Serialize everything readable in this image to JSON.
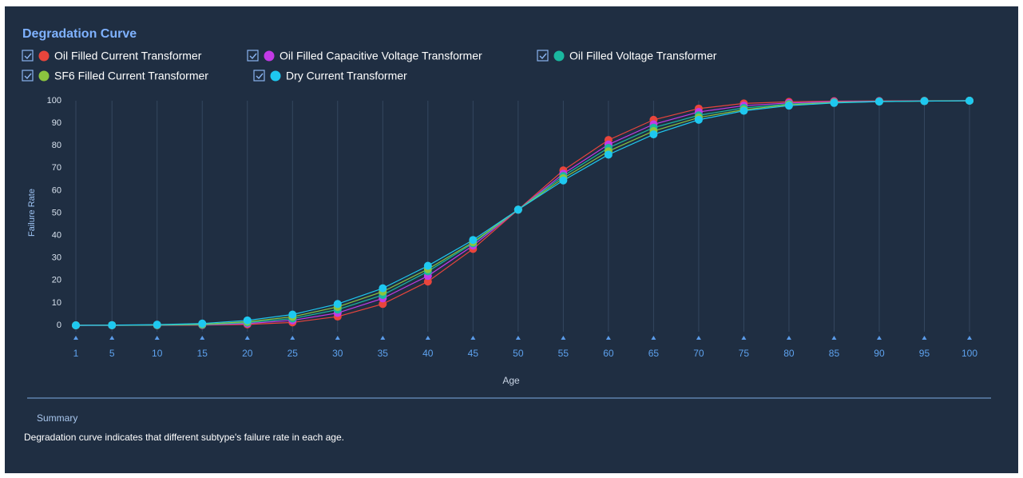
{
  "chart_data": {
    "type": "line",
    "title": "Degradation Curve",
    "xlabel": "Age",
    "ylabel": "Failure Rate",
    "x": [
      1,
      5,
      10,
      15,
      20,
      25,
      30,
      35,
      40,
      45,
      50,
      55,
      60,
      65,
      70,
      75,
      80,
      85,
      90,
      95,
      100
    ],
    "xlim": [
      1,
      100
    ],
    "xticks": [
      1,
      5,
      10,
      15,
      20,
      25,
      30,
      35,
      40,
      45,
      50,
      55,
      60,
      65,
      70,
      75,
      80,
      85,
      90,
      95,
      100
    ],
    "ylim": [
      0,
      100
    ],
    "yticks": [
      0,
      10,
      20,
      30,
      40,
      50,
      60,
      70,
      80,
      90,
      100
    ],
    "grid": true,
    "series": [
      {
        "name": "Oil Filled Current Transformer",
        "color": "#e8453c",
        "values": [
          0,
          0,
          0,
          0.1,
          0.4,
          1.3,
          3.9,
          9.5,
          19.5,
          34,
          51.5,
          69,
          82.5,
          91.5,
          96.5,
          98.8,
          99.5,
          99.8,
          99.9,
          100,
          100
        ]
      },
      {
        "name": "Oil Filled Capacitive Voltage Transformer",
        "color": "#c23ae6",
        "values": [
          0,
          0,
          0.1,
          0.2,
          0.8,
          2.2,
          5.5,
          12,
          22,
          35.5,
          51.5,
          67.5,
          80.5,
          89.5,
          95,
          97.8,
          99,
          99.6,
          99.8,
          99.9,
          100
        ]
      },
      {
        "name": "Oil Filled Voltage Transformer",
        "color": "#1ab8a0",
        "values": [
          0,
          0,
          0.1,
          0.3,
          1.2,
          3,
          7,
          13.5,
          24,
          36.5,
          51.5,
          66.5,
          79,
          88,
          93.5,
          96.8,
          98.5,
          99.3,
          99.7,
          99.9,
          100
        ]
      },
      {
        "name": "SF6 Filled Current Transformer",
        "color": "#8bc53f",
        "values": [
          0,
          0.1,
          0.2,
          0.5,
          1.6,
          3.8,
          8.2,
          15,
          25,
          37,
          51.5,
          65.5,
          77.5,
          86.5,
          92.5,
          96,
          98.2,
          99.2,
          99.6,
          99.8,
          100
        ]
      },
      {
        "name": "Dry Current Transformer",
        "color": "#1ec8f0",
        "values": [
          0,
          0.1,
          0.3,
          0.8,
          2.2,
          4.8,
          9.5,
          16.5,
          26.5,
          38,
          51.5,
          64.5,
          76,
          85,
          91.5,
          95.5,
          97.8,
          99,
          99.6,
          99.8,
          100
        ]
      }
    ]
  },
  "summary": {
    "title": "Summary",
    "text": "Degradation curve indicates that different subtype's failure rate in each age."
  }
}
